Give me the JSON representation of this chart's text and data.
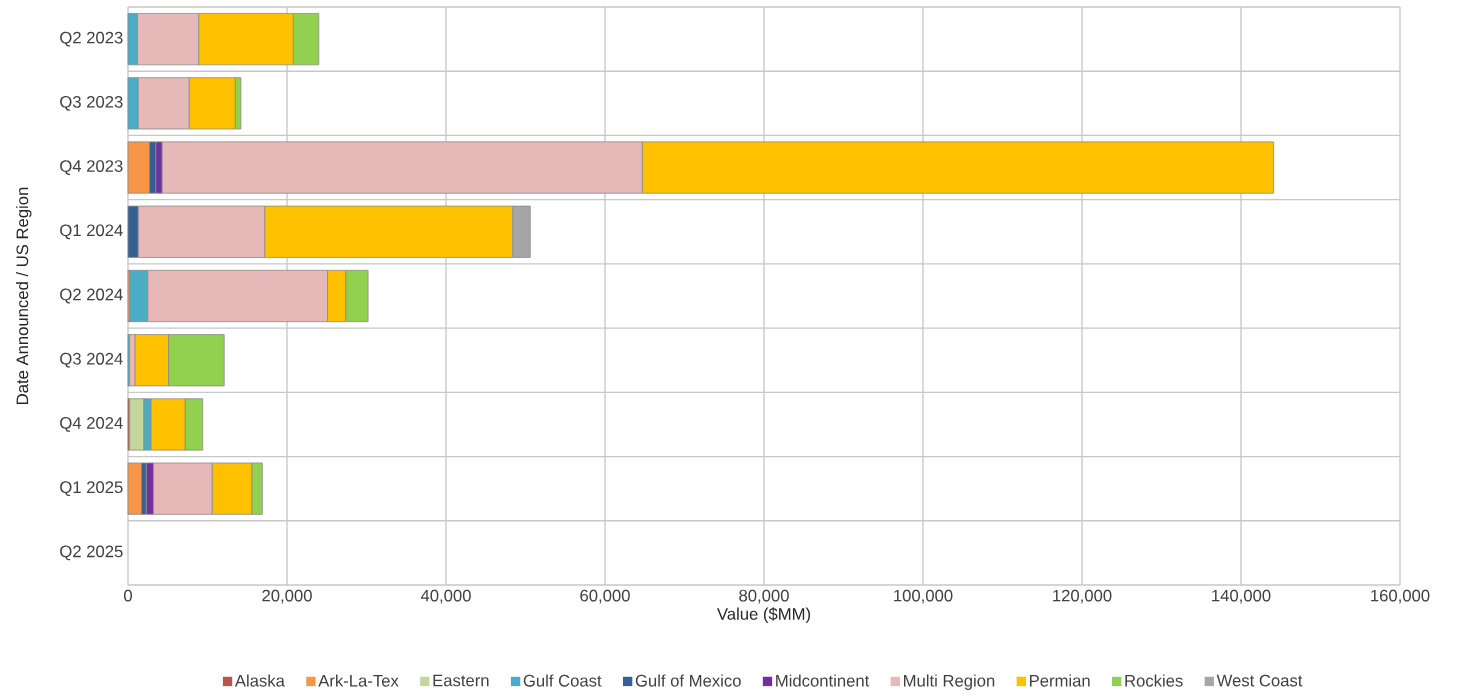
{
  "chart_data": {
    "type": "bar",
    "orientation": "horizontal",
    "stacked": true,
    "xlabel": "Value ($MM)",
    "ylabel": "Date Announced / US Region",
    "categories": [
      "Q2 2023",
      "Q3 2023",
      "Q4 2023",
      "Q1 2024",
      "Q2 2024",
      "Q3 2024",
      "Q4 2024",
      "Q1 2025",
      "Q2 2025"
    ],
    "xlim": [
      0,
      160000
    ],
    "xticks": [
      0,
      {
        "value": 20000,
        "label": "20,000"
      },
      {
        "value": 40000,
        "label": "40,000"
      },
      {
        "value": 60000,
        "label": "60,000"
      },
      {
        "value": 80000,
        "label": "80,000"
      },
      {
        "value": 100000,
        "label": "100,000"
      },
      {
        "value": 120000,
        "label": "120,000"
      },
      {
        "value": 140000,
        "label": "140,000"
      },
      {
        "value": 160000,
        "label": "160,000"
      }
    ],
    "grid": true,
    "legend": "bottom",
    "series": [
      {
        "name": "Alaska",
        "color": "#c0504d",
        "values": [
          null,
          null,
          null,
          null,
          null,
          null,
          200,
          null,
          null
        ]
      },
      {
        "name": "Ark-La-Tex",
        "color": "#f79646",
        "values": [
          null,
          null,
          2700,
          null,
          200,
          null,
          null,
          1700,
          null
        ]
      },
      {
        "name": "Eastern",
        "color": "#c4d79b",
        "values": [
          null,
          null,
          null,
          null,
          null,
          null,
          1800,
          null,
          null
        ]
      },
      {
        "name": "Gulf Coast",
        "color": "#4bacc6",
        "values": [
          1200,
          1300,
          null,
          null,
          2300,
          200,
          900,
          null,
          null
        ]
      },
      {
        "name": "Gulf of Mexico",
        "color": "#366092",
        "values": [
          null,
          null,
          800,
          1300,
          null,
          null,
          null,
          600,
          null
        ]
      },
      {
        "name": "Midcontinent",
        "color": "#7030a0",
        "values": [
          null,
          null,
          800,
          null,
          null,
          null,
          null,
          900,
          null
        ]
      },
      {
        "name": "Multi Region",
        "color": "#e6b8b7",
        "values": [
          7700,
          6400,
          60400,
          15900,
          22600,
          700,
          null,
          7400,
          null
        ]
      },
      {
        "name": "Permian",
        "color": "#ffc000",
        "values": [
          11900,
          5800,
          79400,
          31200,
          2300,
          4200,
          4300,
          5000,
          null
        ]
      },
      {
        "name": "Rockies",
        "color": "#92d050",
        "values": [
          3200,
          700,
          null,
          null,
          2800,
          7000,
          2200,
          1300,
          null
        ]
      },
      {
        "name": "West Coast",
        "color": "#a6a6a6",
        "values": [
          null,
          null,
          null,
          2200,
          null,
          null,
          null,
          null,
          null
        ]
      }
    ]
  }
}
